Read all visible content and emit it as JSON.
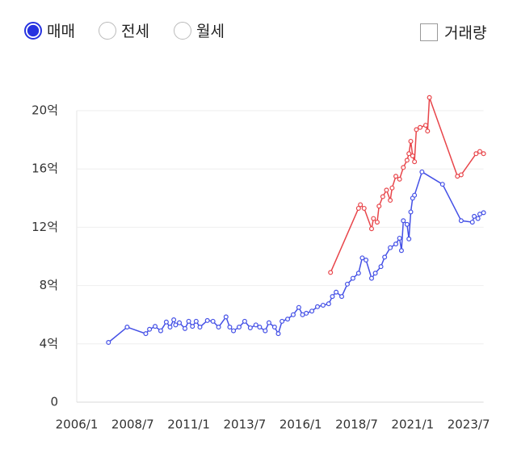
{
  "controls": {
    "trade_types": [
      "매매",
      "전세",
      "월세"
    ],
    "selected": 0,
    "volume_label": "거래량"
  },
  "chart_data": {
    "type": "line",
    "xlim": [
      "2006/1",
      "2024/3"
    ],
    "xticks": [
      "2006/1",
      "2008/7",
      "2011/1",
      "2013/7",
      "2016/1",
      "2018/7",
      "2021/1",
      "2023/7"
    ],
    "ylim": [
      0,
      21
    ],
    "yticks": [
      0,
      {
        "value": 4,
        "label": "4억"
      },
      {
        "value": 8,
        "label": "8억"
      },
      {
        "value": 12,
        "label": "12억"
      },
      {
        "value": 16,
        "label": "16억"
      },
      {
        "value": 20,
        "label": "20억"
      }
    ],
    "grid": true,
    "series": [
      {
        "color": "#4450e6",
        "x": [
          "2007/6",
          "2008/4",
          "2009/2",
          "2009/4",
          "2009/7",
          "2009/10",
          "2010/1",
          "2010/3",
          "2010/5",
          "2010/6",
          "2010/8",
          "2010/11",
          "2011/1",
          "2011/3",
          "2011/5",
          "2011/7",
          "2011/11",
          "2012/2",
          "2012/5",
          "2012/9",
          "2012/11",
          "2013/1",
          "2013/4",
          "2013/7",
          "2013/10",
          "2014/1",
          "2014/3",
          "2014/6",
          "2014/8",
          "2014/11",
          "2015/1",
          "2015/3",
          "2015/6",
          "2015/9",
          "2015/12",
          "2016/2",
          "2016/4",
          "2016/7",
          "2016/10",
          "2017/1",
          "2017/4",
          "2017/6",
          "2017/8",
          "2017/11",
          "2018/2",
          "2018/5",
          "2018/8",
          "2018/10",
          "2018/12",
          "2019/3",
          "2019/5",
          "2019/8",
          "2019/10",
          "2020/1",
          "2020/4",
          "2020/6",
          "2020/7",
          "2020/8",
          "2020/10",
          "2020/11",
          "2020/12",
          "2021/1",
          "2021/2",
          "2021/6",
          "2022/5",
          "2023/3",
          "2023/9",
          "2023/10",
          "2023/12",
          "2024/1",
          "2024/3"
        ],
        "values": [
          4.1,
          5.15,
          4.7,
          5.0,
          5.2,
          4.9,
          5.5,
          5.15,
          5.65,
          5.3,
          5.45,
          5.05,
          5.55,
          5.2,
          5.55,
          5.15,
          5.6,
          5.55,
          5.15,
          5.85,
          5.15,
          4.9,
          5.15,
          5.55,
          5.1,
          5.3,
          5.15,
          4.9,
          5.45,
          5.15,
          4.7,
          5.55,
          5.7,
          6.0,
          6.5,
          6.0,
          6.1,
          6.25,
          6.55,
          6.65,
          6.75,
          7.25,
          7.55,
          7.25,
          8.1,
          8.5,
          8.85,
          9.9,
          9.75,
          8.5,
          8.85,
          9.3,
          9.95,
          10.6,
          10.85,
          11.25,
          10.4,
          12.45,
          12.2,
          11.2,
          13.05,
          14.0,
          14.2,
          15.8,
          14.95,
          12.45,
          12.35,
          12.75,
          12.6,
          12.9,
          13.0
        ]
      },
      {
        "color": "#e8454a",
        "x": [
          "2017/5",
          "2018/8",
          "2018/9",
          "2018/11",
          "2019/3",
          "2019/4",
          "2019/6",
          "2019/7",
          "2019/9",
          "2019/11",
          "2020/1",
          "2020/2",
          "2020/4",
          "2020/6",
          "2020/8",
          "2020/10",
          "2020/11",
          "2020/12",
          "2021/1",
          "2021/2",
          "2021/3",
          "2021/5",
          "2021/8",
          "2021/9",
          "2021/10",
          "2023/1",
          "2023/3",
          "2023/11",
          "2024/1",
          "2024/3"
        ],
        "values": [
          8.9,
          13.3,
          13.55,
          13.3,
          11.9,
          12.6,
          12.35,
          13.45,
          14.1,
          14.55,
          13.85,
          14.7,
          15.5,
          15.3,
          16.1,
          16.6,
          17.05,
          17.9,
          16.9,
          16.5,
          18.7,
          18.85,
          19.0,
          18.6,
          20.9,
          15.5,
          15.6,
          17.05,
          17.2,
          17.05
        ]
      }
    ]
  }
}
